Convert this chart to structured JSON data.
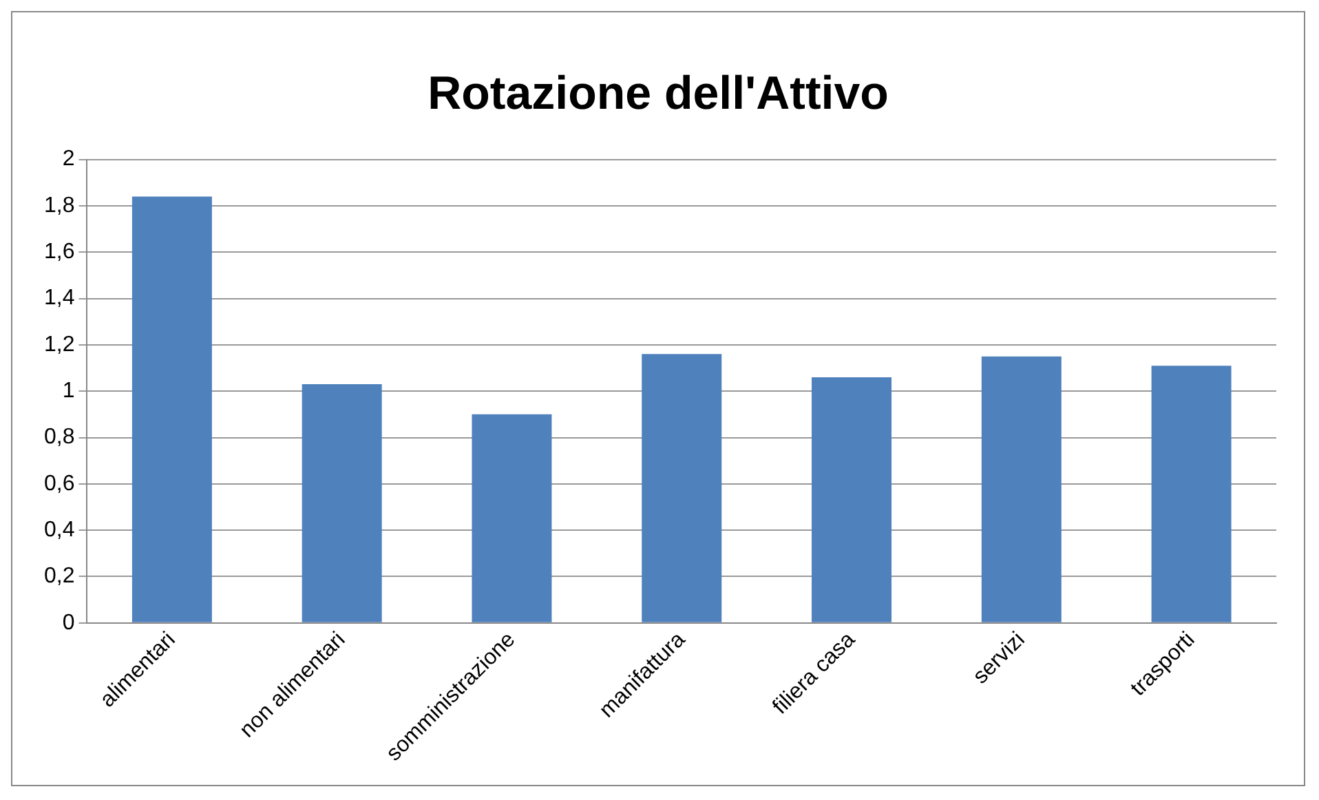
{
  "chart_data": {
    "type": "bar",
    "title": "Rotazione dell'Attivo",
    "categories": [
      "alimentari",
      "non alimentari",
      "somministrazione",
      "manifattura",
      "filiera casa",
      "servizi",
      "trasporti"
    ],
    "values": [
      1.84,
      1.03,
      0.9,
      1.16,
      1.06,
      1.15,
      1.11
    ],
    "color": "#4f81bd",
    "ylim": [
      0,
      2
    ],
    "yticks": [
      0,
      {
        "value": 0.2,
        "label": "0,2"
      },
      {
        "value": 0.4,
        "label": "0,4"
      },
      {
        "value": 0.6,
        "label": "0,6"
      },
      {
        "value": 0.8,
        "label": "0,8"
      },
      1,
      {
        "value": 1.2,
        "label": "1,2"
      },
      {
        "value": 1.4,
        "label": "1,4"
      },
      {
        "value": 1.6,
        "label": "1,6"
      },
      {
        "value": 1.8,
        "label": "1,8"
      },
      2
    ],
    "grid": "y",
    "legend": false
  }
}
